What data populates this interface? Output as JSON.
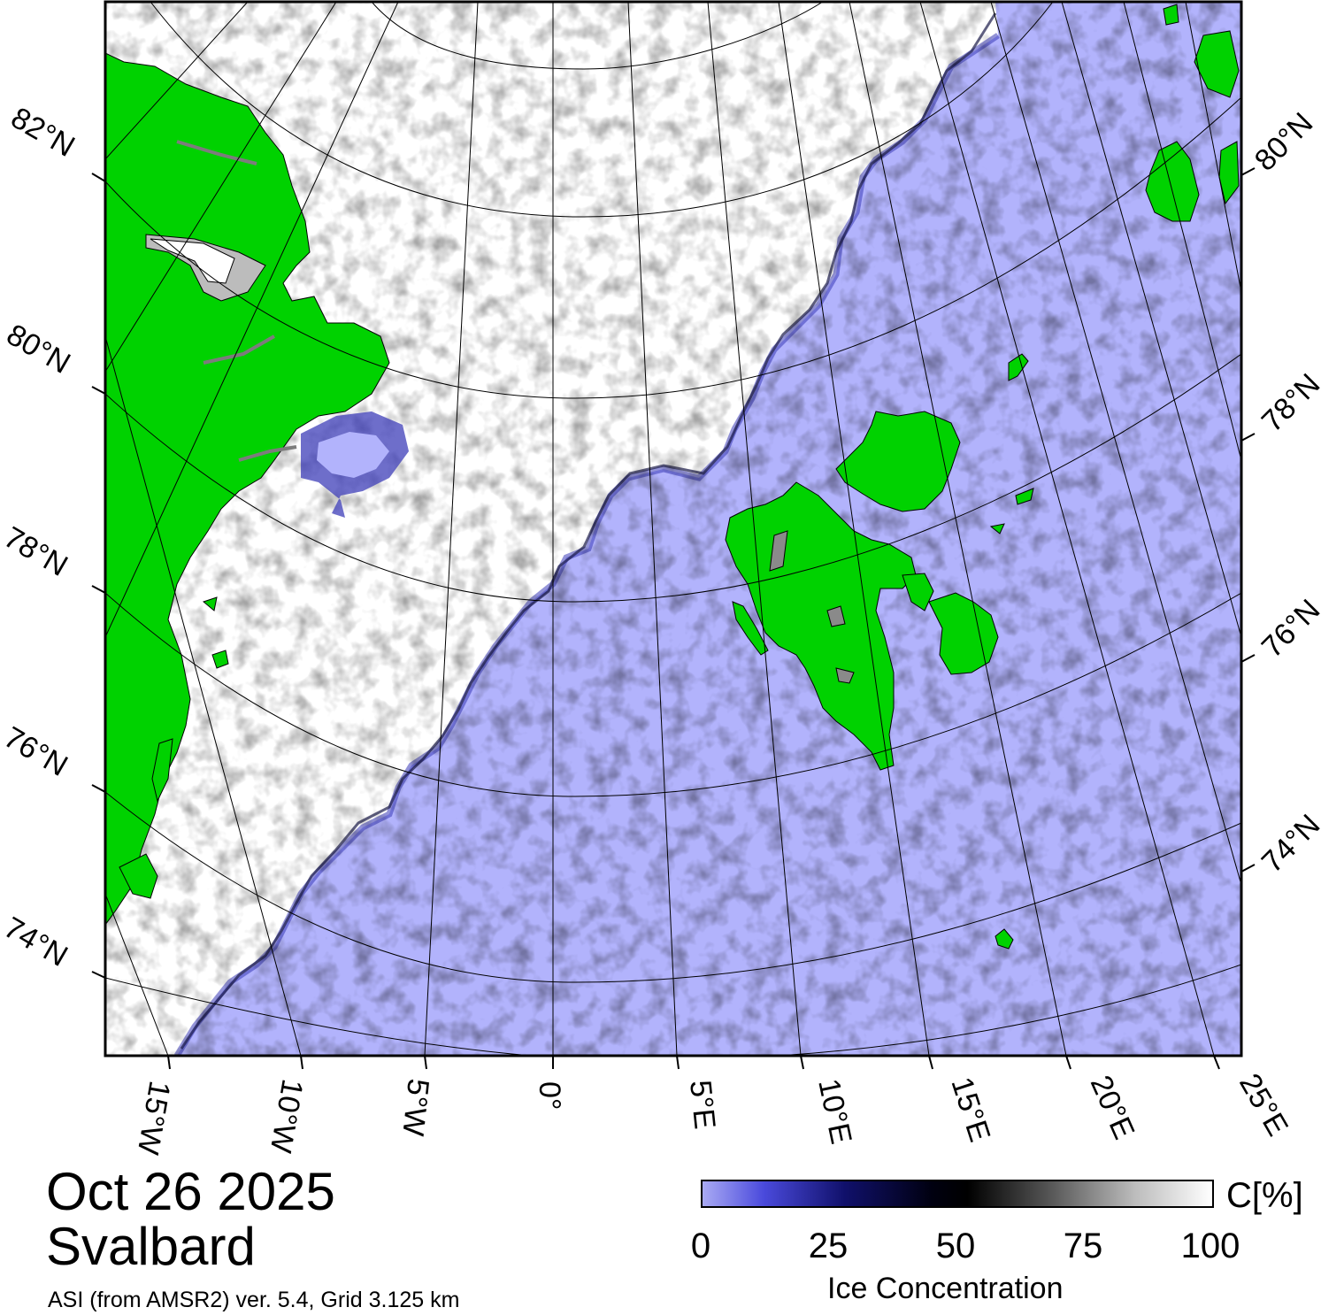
{
  "map": {
    "date": "Oct 26 2025",
    "region": "Svalbard",
    "source": "ASI (from AMSR2) ver. 5.4,  Grid 3.125 km",
    "colors": {
      "open_water": "#b2b3fc",
      "land": "#00d200",
      "ice_full": "#ffffff",
      "coast": "#000000"
    },
    "left_lat_labels": [
      "82°N",
      "80°N",
      "78°N",
      "76°N",
      "74°N"
    ],
    "right_lat_labels": [
      "80°N",
      "78°N",
      "76°N",
      "74°N"
    ],
    "lon_labels": [
      "15°W",
      "10°W",
      "5°W",
      "0°",
      "5°E",
      "10°E",
      "15°E",
      "20°E",
      "25°E"
    ]
  },
  "colorbar": {
    "title": "Ice Concentration",
    "unit": "C[%]",
    "ticks": [
      "0",
      "25",
      "50",
      "75",
      "100"
    ]
  }
}
